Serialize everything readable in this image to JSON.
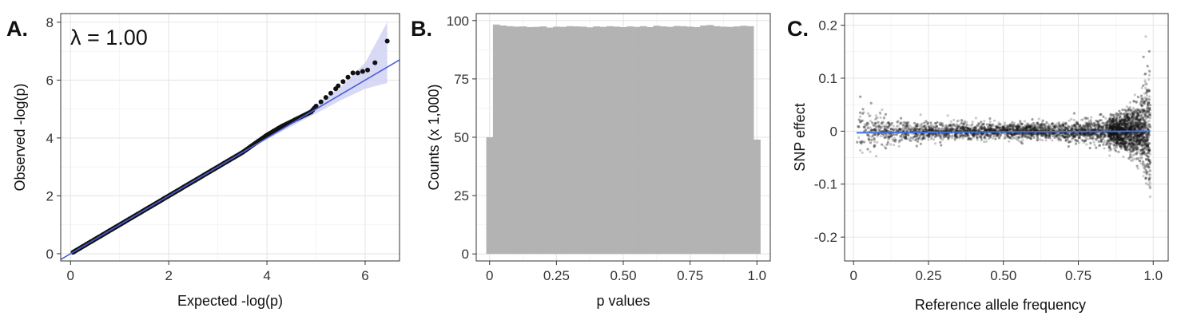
{
  "chart_data": [
    {
      "panel_label": "A.",
      "type": "scatter",
      "annotation": "λ = 1.00",
      "xlabel": "Expected -log(p)",
      "ylabel": "Observed -log(p)",
      "xlim": [
        -0.2,
        6.7
      ],
      "ylim": [
        -0.25,
        8.3
      ],
      "xticks": [
        0,
        2,
        4,
        6
      ],
      "yticks": [
        0,
        2,
        4,
        6,
        8
      ],
      "grid": true,
      "colors": {
        "points": "#111111",
        "line": "#4a5fd8",
        "band": "#c9ccf2"
      },
      "reference_line": {
        "slope": 1.0,
        "intercept": 0.0
      },
      "points": [
        [
          0.05,
          0.05
        ],
        [
          0.3,
          0.3
        ],
        [
          0.6,
          0.6
        ],
        [
          1.0,
          1.0
        ],
        [
          1.5,
          1.5
        ],
        [
          2.0,
          2.0
        ],
        [
          2.5,
          2.5
        ],
        [
          3.0,
          3.0
        ],
        [
          3.5,
          3.5
        ],
        [
          4.0,
          4.1
        ],
        [
          4.3,
          4.4
        ],
        [
          4.6,
          4.65
        ],
        [
          4.9,
          4.9
        ],
        [
          5.0,
          5.1
        ],
        [
          5.1,
          5.25
        ],
        [
          5.2,
          5.4
        ],
        [
          5.3,
          5.55
        ],
        [
          5.4,
          5.7
        ],
        [
          5.45,
          5.8
        ],
        [
          5.55,
          5.95
        ],
        [
          5.65,
          6.1
        ],
        [
          5.75,
          6.25
        ],
        [
          5.85,
          6.25
        ],
        [
          5.95,
          6.3
        ],
        [
          6.05,
          6.35
        ],
        [
          6.2,
          6.6
        ],
        [
          6.45,
          7.35
        ]
      ],
      "confidence_band": {
        "x": [
          0,
          4,
          4.5,
          5,
          5.5,
          6,
          6.45
        ],
        "lower": [
          0,
          3.95,
          4.4,
          4.85,
          5.3,
          5.7,
          5.9
        ],
        "upper": [
          0,
          4.05,
          4.6,
          5.15,
          5.75,
          6.6,
          8.0
        ]
      }
    },
    {
      "panel_label": "B.",
      "type": "bar",
      "xlabel": "p values",
      "ylabel": "Counts (x 1,000)",
      "xlim": [
        -0.05,
        1.05
      ],
      "ylim": [
        -3,
        103
      ],
      "xticks": [
        "0",
        "0.25",
        "0.50",
        "0.75",
        "1.0"
      ],
      "xtick_values": [
        0,
        0.25,
        0.5,
        0.75,
        1.0
      ],
      "yticks": [
        0,
        25,
        50,
        75,
        100
      ],
      "grid": true,
      "colors": {
        "bars": "#b3b3b3"
      },
      "bin_width": 0.025,
      "bin_centers_start": 0.0,
      "values": [
        50,
        98.3,
        97.9,
        97.6,
        97.4,
        97.5,
        97.2,
        97.3,
        97.5,
        97.0,
        97.4,
        97.3,
        97.6,
        97.5,
        97.4,
        97.1,
        97.5,
        97.3,
        97.6,
        97.4,
        97.2,
        97.5,
        97.3,
        97.6,
        97.2,
        97.8,
        97.5,
        97.3,
        97.7,
        97.6,
        97.4,
        97.2,
        97.9,
        98.1,
        97.6,
        97.4,
        97.3,
        97.5,
        97.8,
        97.6,
        49
      ]
    },
    {
      "panel_label": "C.",
      "type": "scatter",
      "xlabel": "Reference allele frequency",
      "ylabel": "SNP effect",
      "xlim": [
        -0.03,
        1.05
      ],
      "ylim": [
        -0.245,
        0.222
      ],
      "xticks": [
        "0",
        "0.25",
        "0.50",
        "0.75",
        "1.0"
      ],
      "xtick_values": [
        0,
        0.25,
        0.5,
        0.75,
        1.0
      ],
      "yticks": [
        "0.2",
        "0.1",
        "0",
        "-0.1",
        "-0.2"
      ],
      "ytick_values": [
        0.2,
        0.1,
        0,
        -0.1,
        -0.2
      ],
      "grid": true,
      "colors": {
        "points": "#111111",
        "line": "#3f6fe3"
      },
      "fit_line": {
        "x": [
          0.01,
          0.99
        ],
        "y": [
          -0.003,
          0.0
        ]
      },
      "spread_envelope": {
        "x": [
          0.01,
          0.1,
          0.25,
          0.5,
          0.75,
          0.9,
          0.95,
          0.98,
          0.99
        ],
        "sd": [
          0.025,
          0.013,
          0.008,
          0.007,
          0.009,
          0.016,
          0.025,
          0.045,
          0.06
        ]
      }
    }
  ]
}
